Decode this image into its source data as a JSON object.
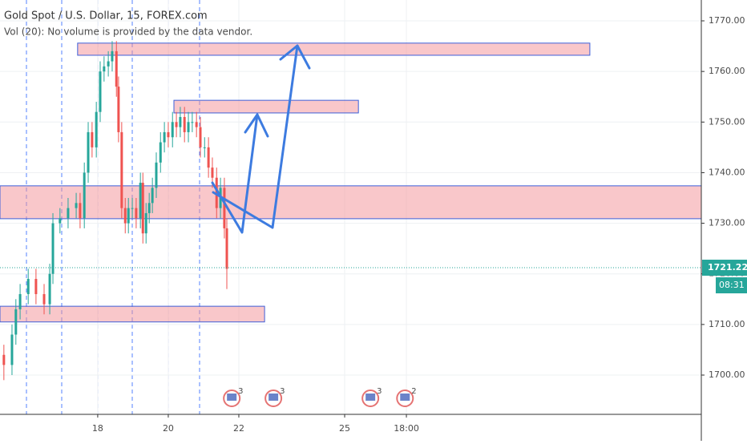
{
  "chart_data": {
    "type": "candlestick",
    "title": "Gold Spot / U.S. Dollar, 15, FOREX.com",
    "subtitle": "Vol (20): No volume is provided by the data vendor.",
    "x": [
      15.34,
      15.57,
      15.68,
      15.8,
      16.03,
      16.25,
      16.48,
      16.64,
      16.73,
      16.93,
      17.16,
      17.39,
      17.5,
      17.62,
      17.73,
      17.84,
      17.96,
      18.07,
      18.18,
      18.3,
      18.41,
      18.53,
      18.59,
      18.68,
      18.78,
      18.87,
      18.98,
      19.09,
      19.21,
      19.28,
      19.37,
      19.46,
      19.55,
      19.66,
      19.78,
      19.89,
      20.0,
      20.12,
      20.23,
      20.34,
      20.46,
      20.57,
      20.68,
      20.8,
      20.91,
      21.03,
      21.14,
      21.25,
      21.37,
      21.48,
      21.59,
      21.66
    ],
    "open": [
      1704,
      1702,
      1708,
      1713,
      1716,
      1719,
      1716,
      1714,
      1720,
      1730,
      1731,
      1733,
      1734,
      1731,
      1740,
      1748,
      1745,
      1752,
      1760,
      1761,
      1762,
      1764,
      1757,
      1748,
      1733,
      1730,
      1733,
      1733,
      1731,
      1738,
      1728,
      1732,
      1734,
      1737,
      1742,
      1746,
      1748,
      1747,
      1750,
      1749,
      1751,
      1748,
      1750,
      1750,
      1749,
      1745,
      1745,
      1741,
      1739,
      1733,
      1737,
      1729
    ],
    "high": [
      1706,
      1710,
      1715,
      1718,
      1721,
      1721,
      1718,
      1722,
      1732,
      1733,
      1735,
      1736,
      1736,
      1742,
      1750,
      1750,
      1754,
      1762,
      1763,
      1764,
      1766,
      1766,
      1759,
      1750,
      1735,
      1735,
      1735,
      1735,
      1740,
      1740,
      1734,
      1736,
      1739,
      1744,
      1748,
      1750,
      1750,
      1752,
      1752,
      1753,
      1753,
      1752,
      1752,
      1752,
      1751,
      1747,
      1747,
      1743,
      1741,
      1739,
      1739,
      1731
    ],
    "low": [
      1699,
      1700,
      1706,
      1711,
      1714,
      1714,
      1712,
      1712,
      1718,
      1728,
      1729,
      1731,
      1729,
      1729,
      1738,
      1743,
      1743,
      1750,
      1758,
      1759,
      1760,
      1755,
      1746,
      1731,
      1728,
      1728,
      1731,
      1729,
      1729,
      1726,
      1726,
      1730,
      1732,
      1735,
      1740,
      1744,
      1745,
      1745,
      1747,
      1747,
      1746,
      1746,
      1748,
      1747,
      1743,
      1743,
      1739,
      1737,
      1731,
      1731,
      1727,
      1717
    ],
    "close": [
      1702,
      1708,
      1713,
      1716,
      1719,
      1716,
      1714,
      1720,
      1730,
      1731,
      1733,
      1734,
      1731,
      1740,
      1748,
      1745,
      1752,
      1760,
      1761,
      1762,
      1764,
      1757,
      1748,
      1733,
      1730,
      1733,
      1733,
      1731,
      1738,
      1728,
      1732,
      1734,
      1737,
      1742,
      1746,
      1748,
      1747,
      1750,
      1749,
      1751,
      1748,
      1750,
      1750,
      1749,
      1745,
      1745,
      1741,
      1739,
      1733,
      1737,
      1729,
      1721
    ],
    "up_color": "#26a69a",
    "down_color": "#ef5350",
    "xlim": [
      15.23,
      35.11
    ],
    "xticks": [
      18,
      20,
      22,
      25,
      {
        "value": 26.75,
        "label": "18:00"
      }
    ],
    "ylim": [
      1692.24,
      1774.12
    ],
    "yticks": [
      {
        "value": 1700,
        "label": "1700.00"
      },
      {
        "value": 1710,
        "label": "1710.00"
      },
      {
        "value": 1720,
        "label": "1720.00"
      },
      {
        "value": 1730,
        "label": "1730.00"
      },
      {
        "value": 1740,
        "label": "1740.00"
      },
      {
        "value": 1750,
        "label": "1750.00"
      },
      {
        "value": 1760,
        "label": "1760.00"
      },
      {
        "value": 1770,
        "label": "1770.00"
      }
    ],
    "grid": true,
    "last_price": 1721.22,
    "countdown": "08:31",
    "zones": [
      {
        "x": [
          17.43,
          31.95
        ],
        "y": [
          1763.2,
          1765.6
        ]
      },
      {
        "x": [
          20.16,
          25.39
        ],
        "y": [
          1751.8,
          1754.3
        ]
      },
      {
        "x": [
          15.23,
          35.11
        ],
        "y": [
          1730.9,
          1737.4
        ]
      },
      {
        "x": [
          15.23,
          22.73
        ],
        "y": [
          1710.5,
          1713.6
        ]
      }
    ],
    "events": [
      {
        "x": 21.8,
        "label": "3"
      },
      {
        "x": 22.98,
        "label": "3"
      },
      {
        "x": 25.73,
        "label": "3"
      },
      {
        "x": 26.71,
        "label": "2"
      }
    ]
  }
}
